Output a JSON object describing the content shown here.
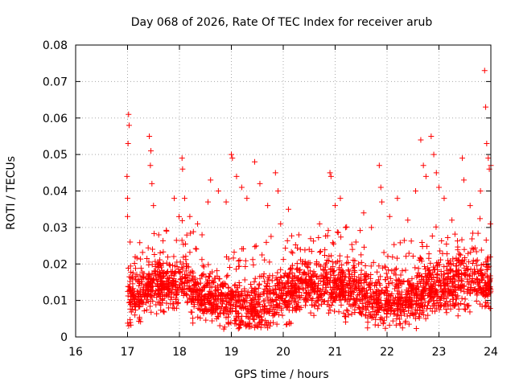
{
  "chart_data": {
    "type": "scatter",
    "title": "Day 068 of 2026, Rate Of TEC Index for receiver arub",
    "xlabel": "GPS time / hours",
    "ylabel": "ROTI / TECUs",
    "xlim": [
      16,
      24
    ],
    "ylim": [
      0,
      0.08
    ],
    "xticks": [
      "16",
      "17",
      "18",
      "19",
      "20",
      "21",
      "22",
      "23",
      "24"
    ],
    "yticks": [
      "0",
      "0.01",
      "0.02",
      "0.03",
      "0.04",
      "0.05",
      "0.06",
      "0.07",
      "0.08"
    ],
    "grid": true,
    "marker": "+",
    "series": [
      {
        "name": "ROTI",
        "color": "#ff0000",
        "points": [
          [
            17.02,
            0.061
          ],
          [
            17.03,
            0.058
          ],
          [
            17.01,
            0.053
          ],
          [
            16.99,
            0.044
          ],
          [
            17.0,
            0.038
          ],
          [
            17.0,
            0.033
          ],
          [
            17.05,
            0.026
          ],
          [
            17.42,
            0.055
          ],
          [
            17.45,
            0.051
          ],
          [
            17.44,
            0.047
          ],
          [
            17.47,
            0.042
          ],
          [
            17.5,
            0.036
          ],
          [
            17.6,
            0.028
          ],
          [
            17.75,
            0.029
          ],
          [
            17.9,
            0.038
          ],
          [
            18.05,
            0.049
          ],
          [
            18.06,
            0.046
          ],
          [
            18.1,
            0.038
          ],
          [
            18.2,
            0.033
          ],
          [
            18.35,
            0.031
          ],
          [
            18.55,
            0.037
          ],
          [
            18.6,
            0.043
          ],
          [
            18.75,
            0.04
          ],
          [
            18.9,
            0.037
          ],
          [
            19.0,
            0.05
          ],
          [
            19.02,
            0.049
          ],
          [
            19.1,
            0.044
          ],
          [
            19.2,
            0.041
          ],
          [
            19.3,
            0.038
          ],
          [
            19.45,
            0.048
          ],
          [
            19.55,
            0.042
          ],
          [
            19.7,
            0.036
          ],
          [
            19.85,
            0.045
          ],
          [
            19.9,
            0.04
          ],
          [
            19.95,
            0.031
          ],
          [
            20.1,
            0.035
          ],
          [
            20.3,
            0.028
          ],
          [
            20.5,
            0.024
          ],
          [
            20.7,
            0.031
          ],
          [
            20.9,
            0.045
          ],
          [
            20.92,
            0.044
          ],
          [
            21.0,
            0.036
          ],
          [
            21.1,
            0.038
          ],
          [
            21.2,
            0.03
          ],
          [
            21.4,
            0.026
          ],
          [
            21.55,
            0.034
          ],
          [
            21.7,
            0.03
          ],
          [
            21.85,
            0.047
          ],
          [
            21.88,
            0.041
          ],
          [
            21.9,
            0.037
          ],
          [
            22.05,
            0.033
          ],
          [
            22.2,
            0.038
          ],
          [
            22.4,
            0.032
          ],
          [
            22.55,
            0.04
          ],
          [
            22.65,
            0.054
          ],
          [
            22.7,
            0.047
          ],
          [
            22.75,
            0.044
          ],
          [
            22.85,
            0.055
          ],
          [
            22.9,
            0.05
          ],
          [
            22.95,
            0.045
          ],
          [
            23.0,
            0.041
          ],
          [
            23.1,
            0.038
          ],
          [
            23.25,
            0.032
          ],
          [
            23.45,
            0.049
          ],
          [
            23.48,
            0.043
          ],
          [
            23.6,
            0.036
          ],
          [
            23.8,
            0.04
          ],
          [
            23.88,
            0.073
          ],
          [
            23.9,
            0.063
          ],
          [
            23.92,
            0.053
          ],
          [
            23.95,
            0.049
          ],
          [
            23.97,
            0.046
          ],
          [
            24.0,
            0.047
          ],
          [
            23.99,
            0.031
          ]
        ]
      }
    ],
    "bulk_cloud": {
      "x_start": 17.0,
      "x_end": 24.0,
      "base_level": 0.0115,
      "spread": 0.006,
      "min_value": 0.002,
      "note": "dense band of points between roughly 0.004 and 0.025 TECU"
    }
  }
}
